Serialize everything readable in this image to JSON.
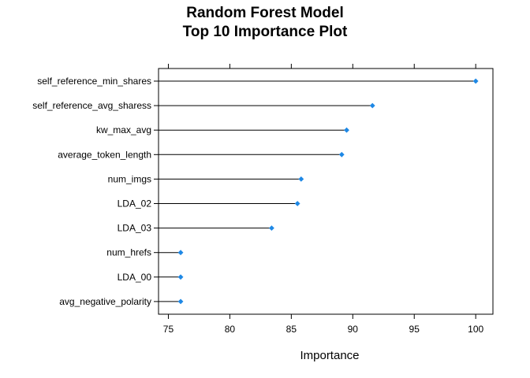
{
  "chart_data": {
    "type": "dotplot",
    "title_lines": [
      "Random Forest Model",
      "Top 10 Importance Plot"
    ],
    "xlabel": "Importance",
    "ylabel": "",
    "xlim": [
      74.2,
      101.4
    ],
    "xticks": [
      75,
      80,
      85,
      90,
      95,
      100
    ],
    "categories": [
      "self_reference_min_shares",
      "self_reference_avg_sharess",
      "kw_max_avg",
      "average_token_length",
      "num_imgs",
      "LDA_02",
      "LDA_03",
      "num_hrefs",
      "LDA_00",
      "avg_negative_polarity"
    ],
    "values": [
      100.0,
      91.6,
      89.5,
      89.1,
      85.8,
      85.5,
      83.4,
      76.0,
      76.0,
      76.0
    ],
    "point_color": "#1E88E5",
    "line_color": "#000000"
  }
}
